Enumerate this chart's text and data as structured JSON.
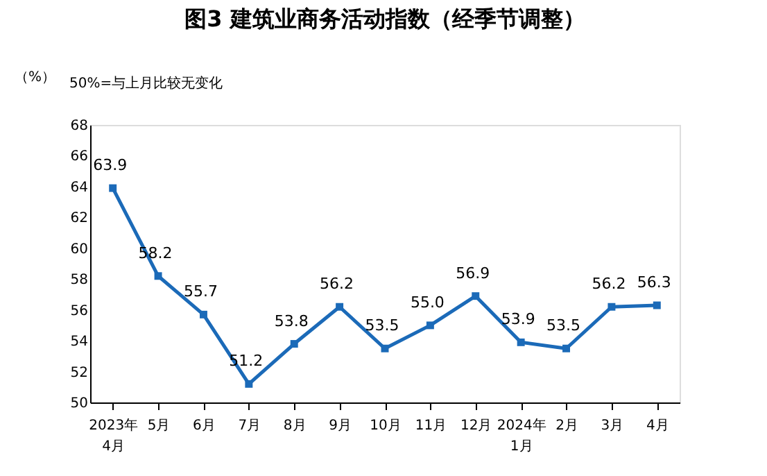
{
  "chart_data": {
    "type": "line",
    "title": "图3  建筑业商务活动指数（经季节调整）",
    "ylabel": "（%）",
    "annotations": [
      "50%=与上月比较无变化"
    ],
    "categories": [
      "2023年\n4月",
      "5月",
      "6月",
      "7月",
      "8月",
      "9月",
      "10月",
      "11月",
      "12月",
      "2024年\n1月",
      "2月",
      "3月",
      "4月"
    ],
    "series": [
      {
        "color": "#1b6ab8",
        "values": [
          63.9,
          58.2,
          55.7,
          51.2,
          53.8,
          56.2,
          53.5,
          55.0,
          56.9,
          53.9,
          53.5,
          56.2,
          56.3
        ]
      }
    ],
    "value_labels": [
      "63.9",
      "58.2",
      "55.7",
      "51.2",
      "53.8",
      "56.2",
      "53.5",
      "55.0",
      "56.9",
      "53.9",
      "53.5",
      "56.2",
      "56.3"
    ],
    "ylim": [
      50,
      68
    ],
    "yticks": [
      50,
      52,
      54,
      56,
      58,
      60,
      62,
      64,
      66,
      68
    ],
    "grid": false,
    "marker": "square",
    "line_style": "solid"
  }
}
